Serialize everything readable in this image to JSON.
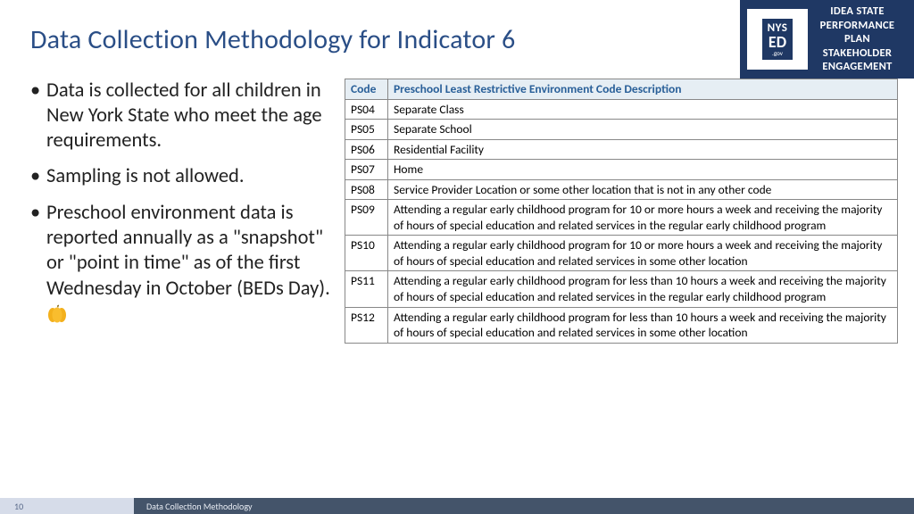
{
  "title": "Data Collection Methodology for Indicator 6",
  "logo": {
    "nys": "NYS",
    "ed": "ED",
    "gov": ".gov",
    "lines": [
      "IDEA STATE",
      "PERFORMANCE",
      "PLAN",
      "STAKEHOLDER",
      "ENGAGEMENT"
    ]
  },
  "bullets": [
    "Data is collected for all children in New York State who meet the age requirements.",
    "Sampling is not allowed.",
    "Preschool environment data is reported annually as a \"snapshot\" or \"point in time\" as of the first Wednesday in October (BEDs Day)."
  ],
  "pumpkin_glyph": "🎃",
  "table": {
    "headers": {
      "code": "Code",
      "desc": "Preschool Least Restrictive Environment Code Description"
    },
    "rows": [
      {
        "code": "PS04",
        "desc": "Separate Class"
      },
      {
        "code": "PS05",
        "desc": "Separate School"
      },
      {
        "code": "PS06",
        "desc": "Residential Facility"
      },
      {
        "code": "PS07",
        "desc": "Home"
      },
      {
        "code": "PS08",
        "desc": "Service Provider Location or some other location that is not in any other code"
      },
      {
        "code": "PS09",
        "desc": "Attending a regular early childhood program for 10 or more hours a week and receiving the majority of hours of special education and related services in the regular early childhood program"
      },
      {
        "code": "PS10",
        "desc": "Attending a regular early childhood program for 10 or more hours a week and receiving the majority of hours of special education and related services in some other location"
      },
      {
        "code": "PS11",
        "desc": "Attending a regular early childhood program for less than 10 hours a week and receiving the majority of hours of special education and related services in the regular early childhood program"
      },
      {
        "code": "PS12",
        "desc": "Attending a regular early childhood program for less than 10 hours a week and receiving the majority of hours of special education and related services in some other location"
      }
    ]
  },
  "footer": {
    "page": "10",
    "label": "Data Collection Methodology"
  },
  "colors": {
    "title": "#2a4e86",
    "logo_bg": "#1f3864",
    "th_bg": "#e6eef4",
    "th_text": "#2a6099",
    "border": "#888888",
    "footer_pg_bg": "#d6dce9",
    "footer_lbl_bg": "#44546a",
    "pumpkin": "#f3b01c"
  }
}
